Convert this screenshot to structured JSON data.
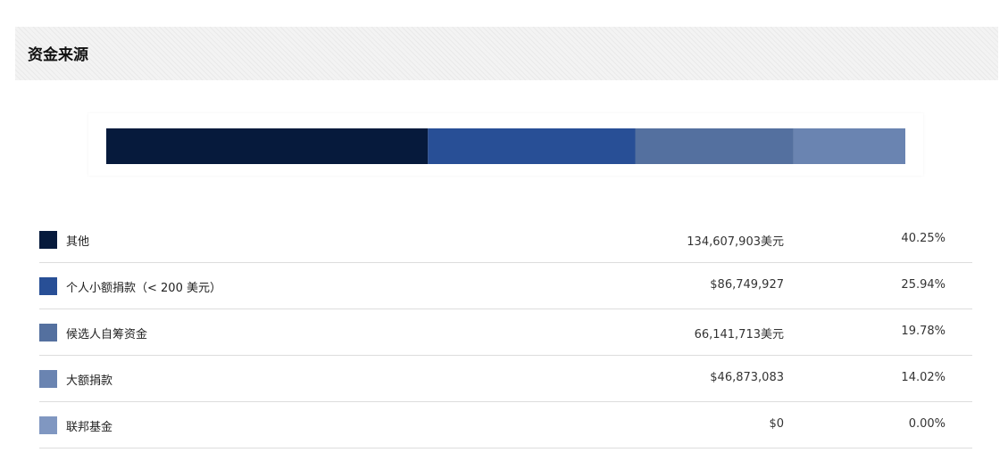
{
  "section": {
    "title": "资金来源"
  },
  "chart_data": {
    "type": "bar",
    "orientation": "horizontal-stacked",
    "categories": [
      "其他",
      "个人小额捐款（< 200 美元）",
      "候选人自筹资金",
      "大额捐款",
      "联邦基金"
    ],
    "values": [
      134607903,
      86749927,
      66141713,
      46873083,
      0
    ],
    "percentages": [
      40.25,
      25.94,
      19.78,
      14.02,
      0.0
    ],
    "colors": [
      "#061a3c",
      "#284f96",
      "#54709f",
      "#6a84b1",
      "#8097c1"
    ],
    "amount_labels": [
      "134,607,903美元",
      "$86,749,927",
      "66,141,713美元",
      "$46,873,083",
      "$0"
    ],
    "percent_labels": [
      "40.25%",
      "25.94%",
      "19.78%",
      "14.02%",
      "0.00%"
    ],
    "title": "",
    "xlabel": "",
    "ylabel": "",
    "legend": "table-below",
    "grid": false
  }
}
